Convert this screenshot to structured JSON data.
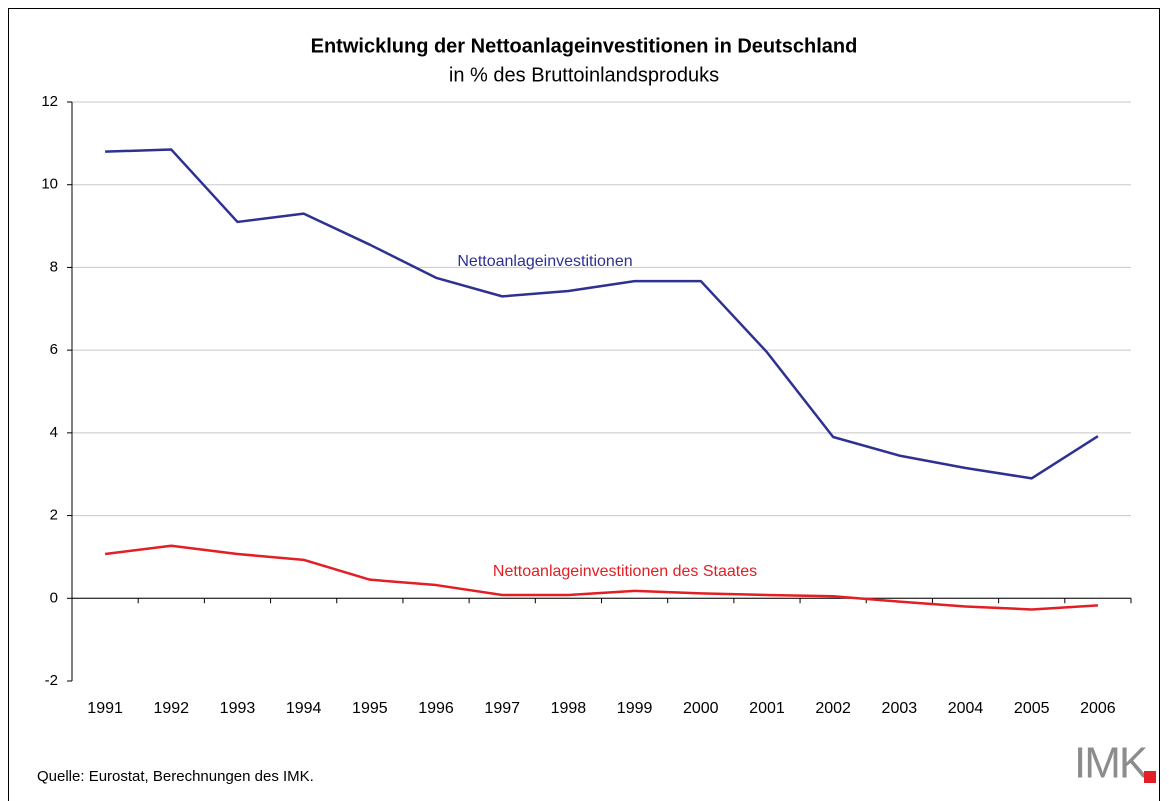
{
  "chart_data": {
    "type": "line",
    "title": "Entwicklung der Nettoanlageinvestitionen in Deutschland",
    "subtitle": "in % des Bruttoinlandsproduks",
    "source": "Quelle: Eurostat, Berechnungen des IMK.",
    "logo": "IMK",
    "categories": [
      "1991",
      "1992",
      "1993",
      "1994",
      "1995",
      "1996",
      "1997",
      "1998",
      "1999",
      "2000",
      "2001",
      "2002",
      "2003",
      "2004",
      "2005",
      "2006"
    ],
    "series": [
      {
        "name": "Nettoanlageinvestitionen",
        "color": "#2e3192",
        "values": [
          10.8,
          10.85,
          9.1,
          9.3,
          8.55,
          7.75,
          7.3,
          7.43,
          7.67,
          7.67,
          5.95,
          3.9,
          3.45,
          3.15,
          2.9,
          3.92
        ]
      },
      {
        "name": "Nettoanlageinvestitionen des Staates",
        "color": "#e31e24",
        "values": [
          1.07,
          1.27,
          1.07,
          0.93,
          0.45,
          0.32,
          0.08,
          0.08,
          0.18,
          0.12,
          0.08,
          0.05,
          -0.08,
          -0.2,
          -0.27,
          -0.17
        ]
      }
    ],
    "ylim": [
      -2,
      12
    ],
    "yticks": [
      -2,
      0,
      2,
      4,
      6,
      8,
      10,
      12
    ],
    "grid": true
  }
}
